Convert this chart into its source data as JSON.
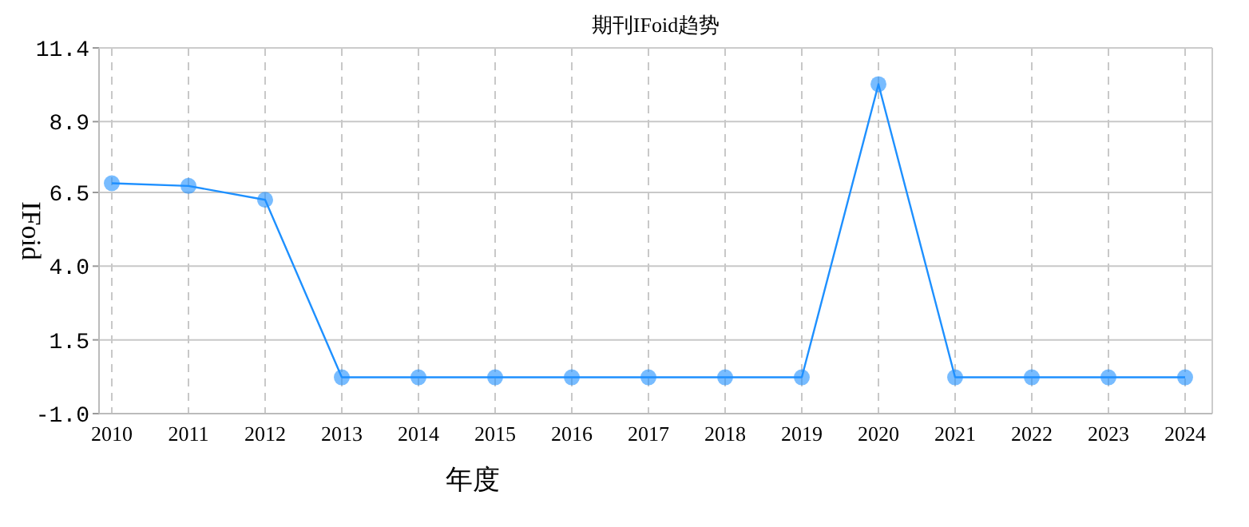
{
  "chart_data": {
    "type": "line",
    "title": "期刊IFoid趋势",
    "xlabel": "年度",
    "ylabel": "IFoid",
    "categories": [
      "2010",
      "2011",
      "2012",
      "2013",
      "2014",
      "2015",
      "2016",
      "2017",
      "2018",
      "2019",
      "2020",
      "2021",
      "2022",
      "2023",
      "2024"
    ],
    "series": [
      {
        "color": "#1e90ff",
        "values": [
          6.81,
          6.72,
          6.25,
          0.23,
          0.23,
          0.23,
          0.23,
          0.23,
          0.23,
          0.23,
          10.17,
          0.23,
          0.23,
          0.23,
          0.23
        ]
      }
    ],
    "ylim": [
      -1.0,
      11.4
    ],
    "yticks": [
      {
        "value": -1.0,
        "label": "-1.0"
      },
      {
        "value": 1.5,
        "label": "1.5"
      },
      {
        "value": 4.0,
        "label": "4.0"
      },
      {
        "value": 6.5,
        "label": "6.5"
      },
      {
        "value": 8.9,
        "label": "8.9"
      },
      {
        "value": 11.4,
        "label": "11.4"
      }
    ],
    "grid": true,
    "marker": "circle",
    "line_style": "solid"
  }
}
